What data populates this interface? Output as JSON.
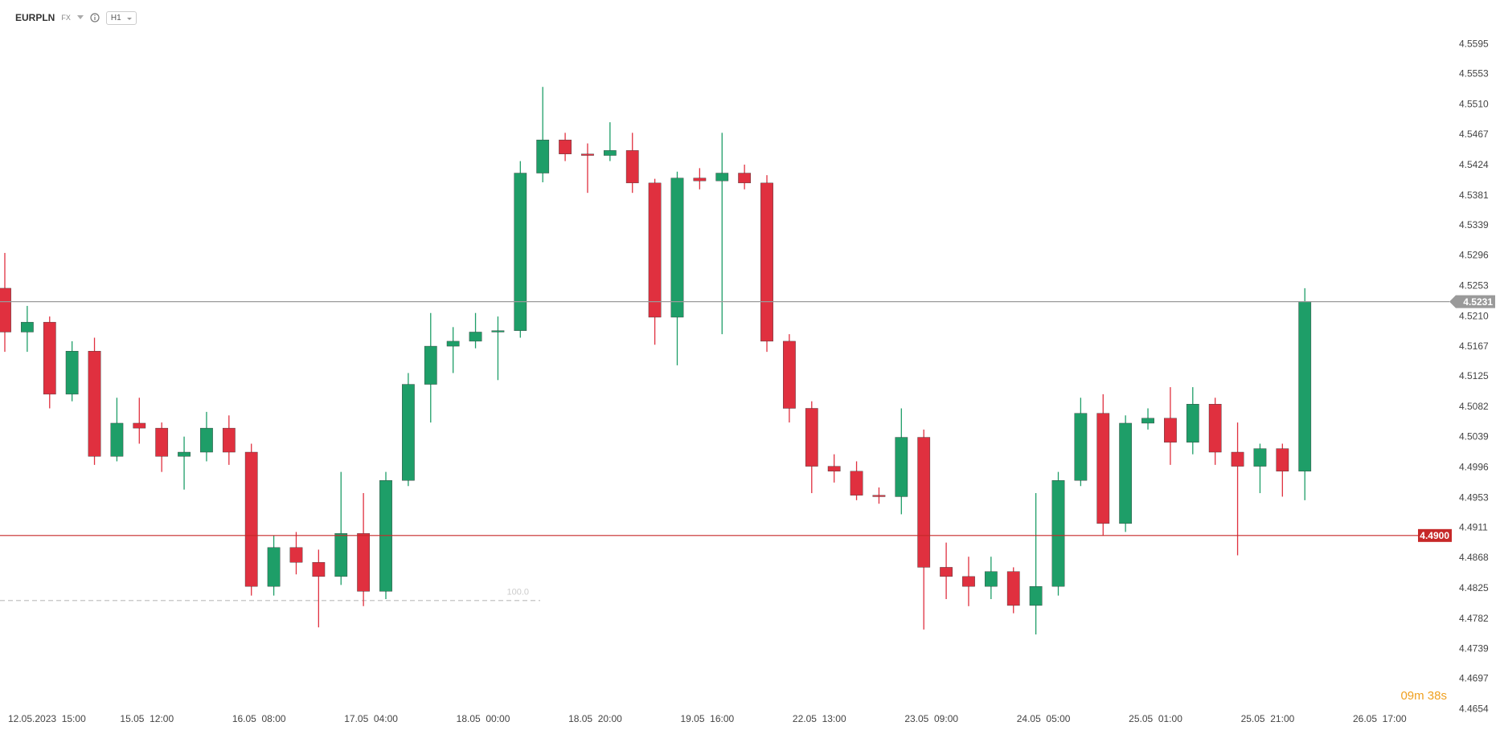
{
  "chart_data": {
    "type": "candlestick",
    "title": "EURPLN",
    "market": "FX",
    "timeframe": "H1",
    "countdown": "09m 38s",
    "up_color": "#1e9e68",
    "down_color": "#e0303f",
    "x": [
      0,
      4,
      8,
      12,
      16,
      20,
      24,
      28,
      32,
      36,
      40,
      44,
      48,
      52,
      56,
      60,
      64,
      68,
      72,
      76,
      80,
      84,
      88,
      92,
      96,
      100,
      104,
      108,
      112,
      116,
      120,
      124,
      128,
      132,
      136,
      140,
      144,
      148,
      152,
      156,
      160,
      164,
      168,
      172,
      176,
      180,
      184,
      188,
      192,
      196,
      200,
      204,
      208,
      212,
      216,
      220,
      224,
      228,
      232
    ],
    "open": [
      4.525,
      4.5188,
      4.5202,
      4.51,
      4.5161,
      4.5012,
      4.5059,
      4.5052,
      4.5012,
      4.5018,
      4.5052,
      4.5018,
      4.4828,
      4.4883,
      4.4862,
      4.4842,
      4.4903,
      4.4821,
      4.4978,
      4.5114,
      4.5168,
      4.5175,
      4.5188,
      4.519,
      4.5413,
      4.546,
      4.544,
      4.5438,
      4.5445,
      4.5399,
      4.5209,
      4.5406,
      4.5402,
      4.5413,
      4.5399,
      4.5175,
      4.508,
      4.4998,
      4.4991,
      4.4957,
      4.4955,
      4.5039,
      4.4855,
      4.4842,
      4.4828,
      4.4849,
      4.4801,
      4.4828,
      4.4978,
      4.5073,
      4.4917,
      4.5059,
      4.5066,
      4.5032,
      4.5086,
      4.5018,
      4.4998,
      4.5023,
      4.4991
    ],
    "high": [
      4.53,
      4.5225,
      4.521,
      4.5175,
      4.518,
      4.5095,
      4.5095,
      4.506,
      4.504,
      4.5075,
      4.507,
      4.503,
      4.49,
      4.4905,
      4.488,
      4.499,
      4.496,
      4.499,
      4.513,
      4.5215,
      4.5195,
      4.5215,
      4.521,
      4.543,
      4.5535,
      4.547,
      4.5455,
      4.5485,
      4.547,
      4.5405,
      4.5415,
      4.542,
      4.547,
      4.5425,
      4.541,
      4.5185,
      4.509,
      4.5015,
      4.5005,
      4.4968,
      4.508,
      4.505,
      4.489,
      4.487,
      4.487,
      4.4855,
      4.496,
      4.499,
      4.5095,
      4.51,
      4.507,
      4.508,
      4.511,
      4.511,
      4.5095,
      4.506,
      4.503,
      4.503,
      4.525
    ],
    "low": [
      4.516,
      4.516,
      4.508,
      4.509,
      4.5,
      4.5005,
      4.503,
      4.499,
      4.4965,
      4.5005,
      4.5,
      4.4815,
      4.4815,
      4.4845,
      4.477,
      4.483,
      4.48,
      4.481,
      4.497,
      4.506,
      4.513,
      4.5165,
      4.512,
      4.518,
      4.54,
      4.543,
      4.5385,
      4.543,
      4.5385,
      4.517,
      4.5141,
      4.539,
      4.5185,
      4.539,
      4.516,
      4.506,
      4.496,
      4.4975,
      4.495,
      4.4945,
      4.493,
      4.4767,
      4.481,
      4.48,
      4.481,
      4.479,
      4.476,
      4.4815,
      4.497,
      4.49,
      4.4905,
      4.505,
      4.5,
      4.5015,
      4.5,
      4.4872,
      4.496,
      4.4955,
      4.495
    ],
    "close": [
      4.5188,
      4.5202,
      4.51,
      4.5161,
      4.5012,
      4.5059,
      4.5052,
      4.5012,
      4.5018,
      4.5052,
      4.5018,
      4.4828,
      4.4883,
      4.4862,
      4.4842,
      4.4903,
      4.4821,
      4.4978,
      4.5114,
      4.5168,
      4.5175,
      4.5188,
      4.519,
      4.5413,
      4.546,
      4.544,
      4.5438,
      4.5445,
      4.5399,
      4.5209,
      4.5406,
      4.5402,
      4.5413,
      4.5399,
      4.5175,
      4.508,
      4.4998,
      4.4991,
      4.4957,
      4.4955,
      4.5039,
      4.4855,
      4.4842,
      4.4828,
      4.4849,
      4.4801,
      4.4828,
      4.4978,
      4.5073,
      4.4917,
      4.5059,
      4.5066,
      4.5032,
      4.5086,
      4.5018,
      4.4998,
      4.5023,
      4.4991,
      4.5231
    ],
    "xlim": [
      -0.86,
      256.5
    ],
    "xticks": [
      {
        "value": 0,
        "label": "12.05.2023  15:00"
      },
      {
        "value": 20,
        "label": "15.05  12:00"
      },
      {
        "value": 40,
        "label": "16.05  08:00"
      },
      {
        "value": 60,
        "label": "17.05  04:00"
      },
      {
        "value": 80,
        "label": "18.05  00:00"
      },
      {
        "value": 100,
        "label": "18.05  20:00"
      },
      {
        "value": 120,
        "label": "19.05  16:00"
      },
      {
        "value": 140,
        "label": "22.05  13:00"
      },
      {
        "value": 160,
        "label": "23.05  09:00"
      },
      {
        "value": 180,
        "label": "24.05  05:00"
      },
      {
        "value": 200,
        "label": "25.05  01:00"
      },
      {
        "value": 220,
        "label": "25.05  21:00"
      },
      {
        "value": 240,
        "label": "26.05  17:00"
      }
    ],
    "ylim": [
      4.4652,
      4.5658
    ],
    "yticks": [
      4.5595,
      4.5553,
      {
        "value": 4.551,
        "label": "4.5510"
      },
      4.5467,
      4.5424,
      4.5381,
      4.5339,
      4.5296,
      4.5253,
      {
        "value": 4.521,
        "label": "4.5210"
      },
      4.5167,
      4.5125,
      4.5082,
      4.5039,
      4.4996,
      4.4953,
      4.4911,
      4.4868,
      4.4825,
      4.4782,
      4.4739,
      4.4697,
      4.4654
    ],
    "grid": false,
    "price_lines": [
      {
        "value": 4.5231,
        "color": "#9a9a9a"
      },
      {
        "value": 4.49,
        "label": "4.4900",
        "color": "#c62828"
      }
    ],
    "level_line": {
      "value": 4.4808,
      "label": "100.0",
      "color": "#cccccc"
    }
  }
}
